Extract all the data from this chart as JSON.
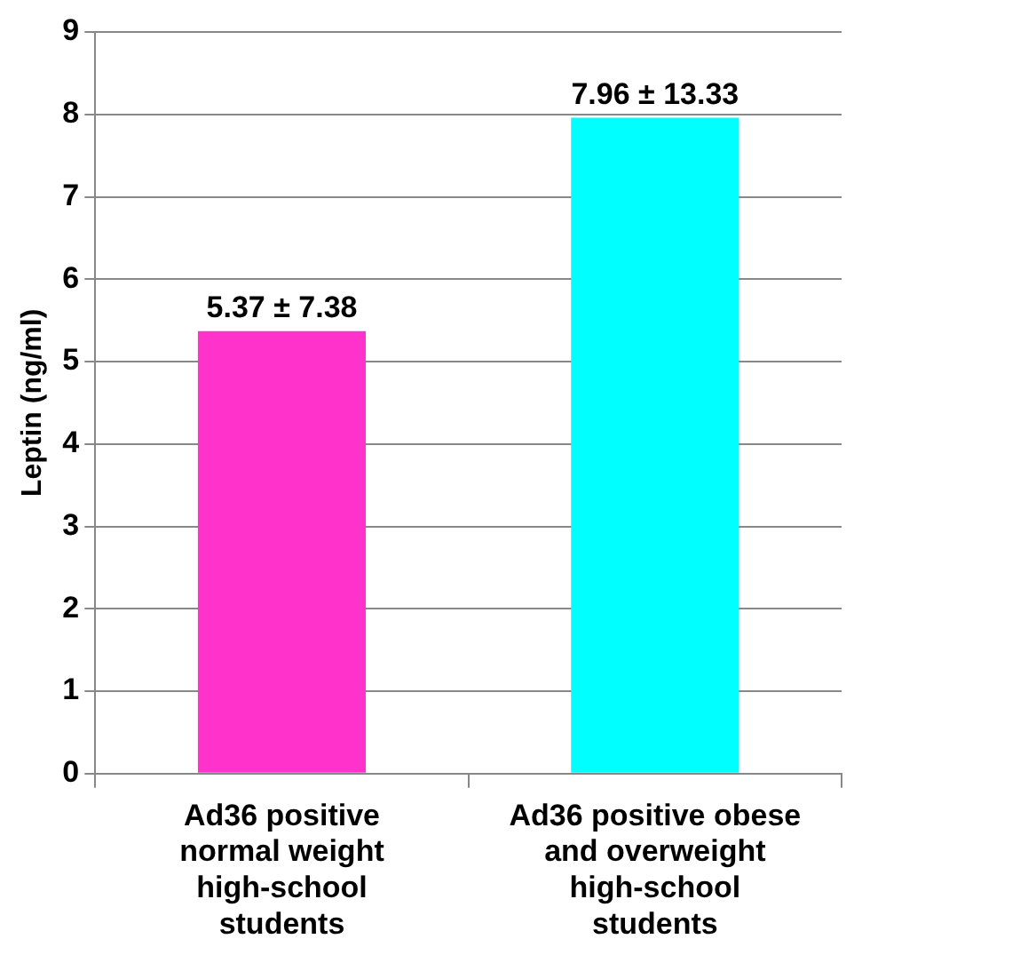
{
  "chart_data": {
    "type": "bar",
    "ylabel": "Leptin (ng/ml)",
    "categories": [
      "Ad36 positive normal weight high-school students",
      "Ad36 positive obese and overweight high-school students"
    ],
    "values": [
      5.37,
      7.96
    ],
    "colors": [
      "#ff33cc",
      "#00ffff"
    ],
    "value_labels": [
      "5.37 ± 7.38",
      "7.96 ± 13.33"
    ],
    "ylim": [
      0,
      9
    ],
    "yticks": [
      0,
      1,
      2,
      3,
      4,
      5,
      6,
      7,
      8,
      9
    ],
    "grid": "y",
    "legend": false
  }
}
